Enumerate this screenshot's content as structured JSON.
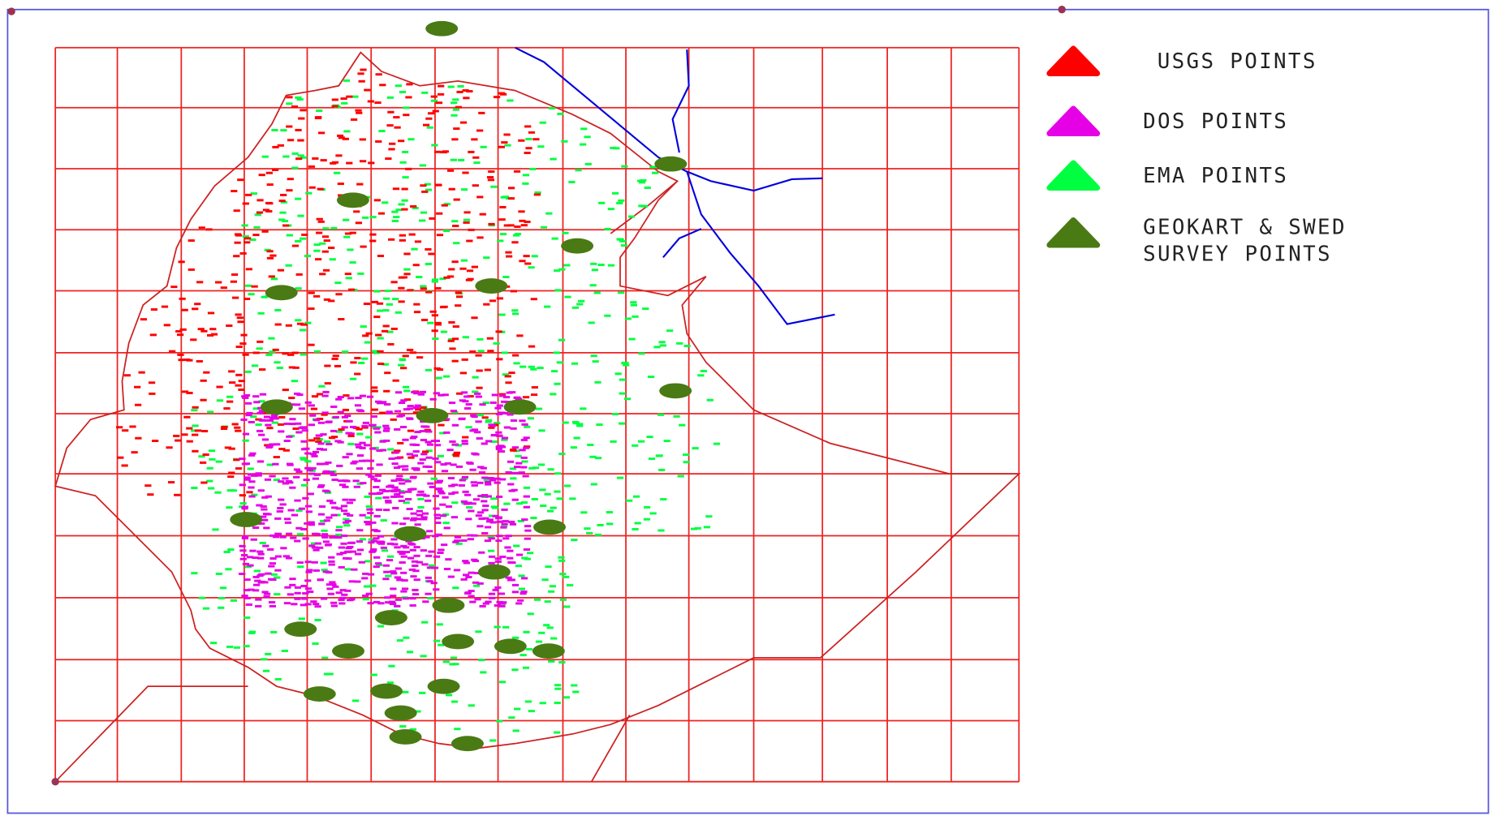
{
  "legend": {
    "items": [
      {
        "label_lines": [
          "USGS POINTS"
        ],
        "color": "#ff0000"
      },
      {
        "label_lines": [
          "DOS POINTS"
        ],
        "color": "#e600e6"
      },
      {
        "label_lines": [
          "EMA POINTS"
        ],
        "color": "#00ff40"
      },
      {
        "label_lines": [
          "GEOKART & SWED",
          "SURVEY POINTS"
        ],
        "color": "#4a7a14"
      }
    ]
  }
}
